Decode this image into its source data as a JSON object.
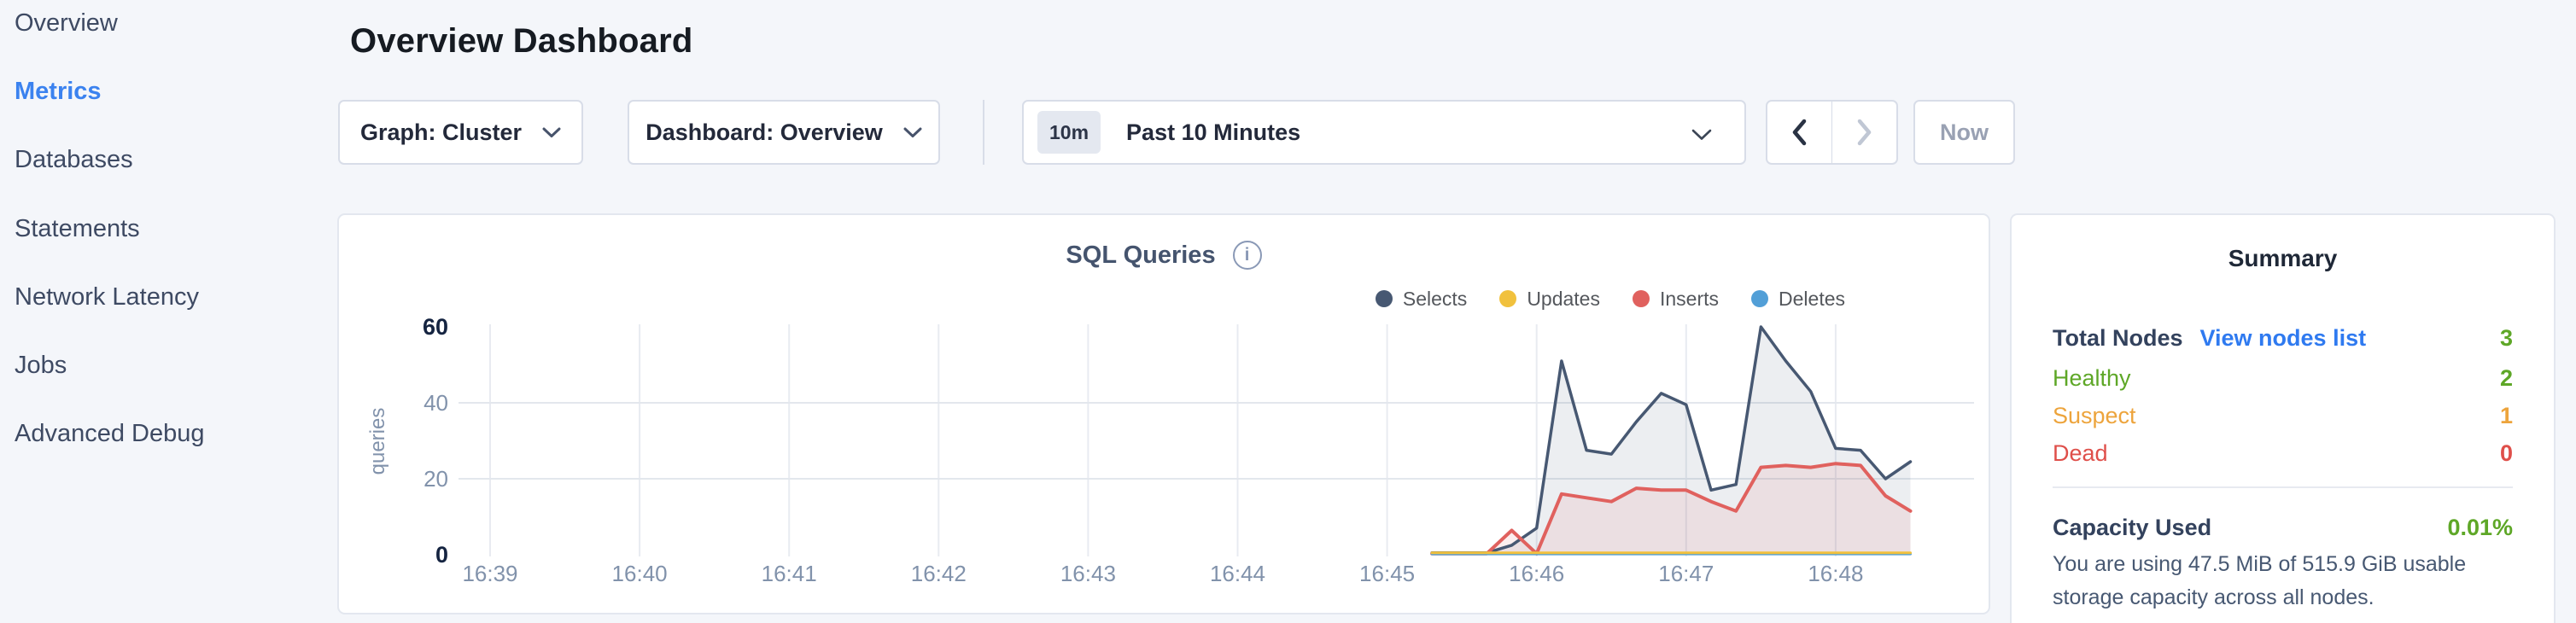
{
  "sidebar": {
    "items": [
      {
        "label": "Overview",
        "active": false
      },
      {
        "label": "Metrics",
        "active": true
      },
      {
        "label": "Databases",
        "active": false
      },
      {
        "label": "Statements",
        "active": false
      },
      {
        "label": "Network Latency",
        "active": false
      },
      {
        "label": "Jobs",
        "active": false
      },
      {
        "label": "Advanced Debug",
        "active": false
      }
    ]
  },
  "header": {
    "title": "Overview Dashboard"
  },
  "controls": {
    "graph_dropdown": "Graph: Cluster",
    "dashboard_dropdown": "Dashboard: Overview",
    "time_range": {
      "badge": "10m",
      "label": "Past 10 Minutes"
    },
    "prev_arrow": {
      "enabled": true
    },
    "next_arrow": {
      "enabled": false
    },
    "now_label": "Now"
  },
  "chart_data": {
    "type": "area",
    "title": "SQL Queries",
    "ylabel": "queries",
    "ylim": [
      0,
      60
    ],
    "yticks": [
      0,
      20,
      40,
      60
    ],
    "x_ticks": [
      "16:39",
      "16:40",
      "16:41",
      "16:42",
      "16:43",
      "16:44",
      "16:45",
      "16:46",
      "16:47",
      "16:48"
    ],
    "x_tick_seconds": [
      0,
      60,
      120,
      180,
      240,
      300,
      360,
      420,
      480,
      540
    ],
    "legend_position": "top-right",
    "series": [
      {
        "name": "Selects",
        "color": "#475872",
        "fill": "rgba(71,88,114,0.10)",
        "points": [
          [
            378,
            0.5
          ],
          [
            390,
            0.5
          ],
          [
            400,
            0.5
          ],
          [
            410,
            2.5
          ],
          [
            420,
            7
          ],
          [
            430,
            51
          ],
          [
            440,
            27.5
          ],
          [
            450,
            26.5
          ],
          [
            460,
            35
          ],
          [
            470,
            42.5
          ],
          [
            480,
            39.5
          ],
          [
            490,
            17
          ],
          [
            500,
            18.5
          ],
          [
            510,
            60
          ],
          [
            520,
            51
          ],
          [
            530,
            43
          ],
          [
            540,
            28
          ],
          [
            550,
            27.5
          ],
          [
            560,
            20
          ],
          [
            570,
            24.5
          ]
        ]
      },
      {
        "name": "Updates",
        "color": "#f1c13d",
        "fill": "none",
        "points": [
          [
            378,
            0.5
          ],
          [
            570,
            0.5
          ]
        ]
      },
      {
        "name": "Inserts",
        "color": "#e0615e",
        "fill": "rgba(224,97,94,0.10)",
        "points": [
          [
            378,
            0.3
          ],
          [
            390,
            0.3
          ],
          [
            400,
            0.3
          ],
          [
            410,
            6.4
          ],
          [
            420,
            0.3
          ],
          [
            430,
            16
          ],
          [
            440,
            15
          ],
          [
            450,
            14
          ],
          [
            460,
            17.5
          ],
          [
            470,
            17
          ],
          [
            480,
            17
          ],
          [
            490,
            14
          ],
          [
            500,
            11.5
          ],
          [
            510,
            23
          ],
          [
            520,
            23.5
          ],
          [
            530,
            23
          ],
          [
            540,
            24
          ],
          [
            550,
            23.5
          ],
          [
            560,
            15.5
          ],
          [
            570,
            11.5
          ]
        ]
      },
      {
        "name": "Deletes",
        "color": "#529fd7",
        "fill": "none",
        "points": [
          [
            378,
            0.2
          ],
          [
            570,
            0.2
          ]
        ]
      }
    ]
  },
  "summary": {
    "title": "Summary",
    "rows": [
      {
        "label": "Total Nodes",
        "label_color": "dark",
        "link": "View nodes list",
        "value": "3",
        "value_color": "green"
      },
      {
        "label": "Healthy",
        "label_color": "green",
        "value": "2",
        "value_color": "green"
      },
      {
        "label": "Suspect",
        "label_color": "orange",
        "value": "1",
        "value_color": "orange"
      },
      {
        "label": "Dead",
        "label_color": "red",
        "value": "0",
        "value_color": "red"
      }
    ],
    "capacity": {
      "label": "Capacity Used",
      "value": "0.01%",
      "value_color": "green"
    },
    "capacity_note": "You are using 47.5 MiB of 515.9 GiB usable storage capacity across all nodes."
  },
  "colors": {
    "accent_link": "#2f7af0",
    "active_nav": "#3b82ef",
    "healthy_green": "#5ea727",
    "suspect_orange": "#eda43c",
    "dead_red": "#df4f4a",
    "series_selects": "#475872",
    "series_updates": "#f1c13d",
    "series_inserts": "#e0615e",
    "series_deletes": "#529fd7"
  }
}
